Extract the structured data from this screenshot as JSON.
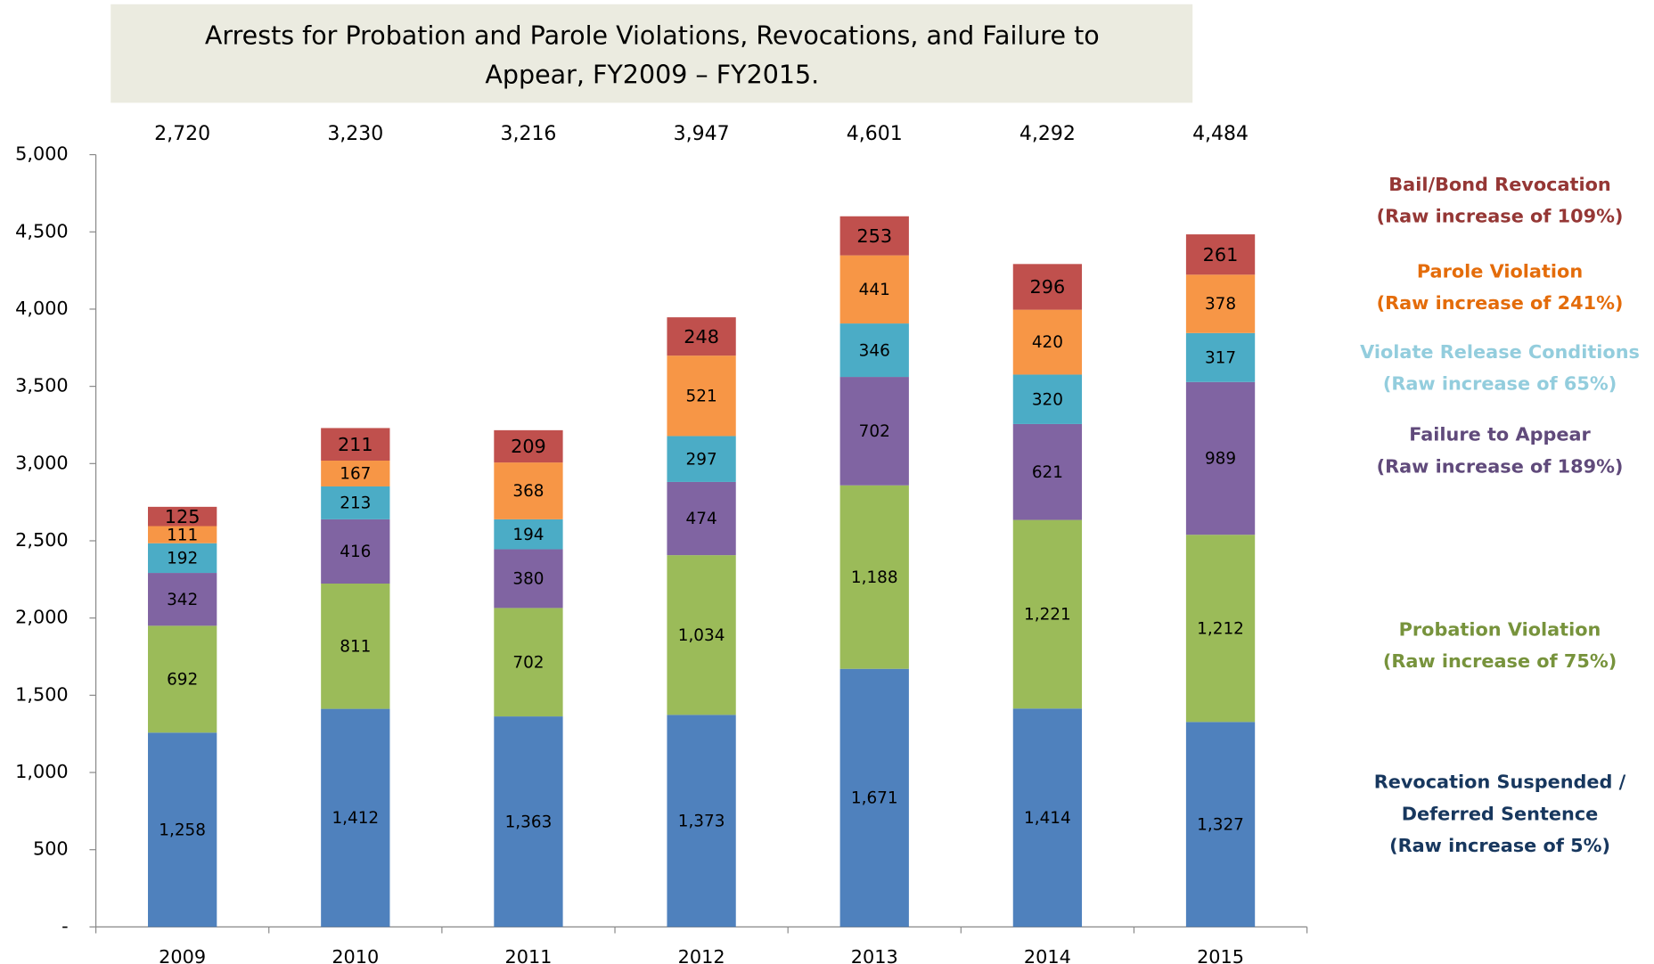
{
  "chart_data": {
    "type": "stacked_bar",
    "title": [
      "Arrests for Probation and Parole Violations, Revocations, and Failure to",
      "Appear, FY2009 – FY2015."
    ],
    "categories": [
      "2009",
      "2010",
      "2011",
      "2012",
      "2013",
      "2014",
      "2015"
    ],
    "series": [
      {
        "name": "Revocation Suspended / Deferred Sentence",
        "note": "(Raw increase of 5%)",
        "color": "#4f81bd",
        "label_color": "#17375e",
        "values": [
          1258,
          1412,
          1363,
          1373,
          1671,
          1414,
          1327
        ],
        "value_labels": [
          "1,258",
          "1,412",
          "1,363",
          "1,373",
          "1,671",
          "1,414",
          "1,327"
        ]
      },
      {
        "name": "Probation Violation",
        "note": "(Raw increase of 75%)",
        "color": "#9bbb59",
        "label_color": "#77933c",
        "values": [
          692,
          811,
          702,
          1034,
          1188,
          1221,
          1212
        ],
        "value_labels": [
          "692",
          "811",
          "702",
          "1,034",
          "1,188",
          "1,221",
          "1,212"
        ]
      },
      {
        "name": "Failure to Appear",
        "note": "(Raw increase of 189%)",
        "color": "#8064a2",
        "label_color": "#604a7b",
        "values": [
          342,
          416,
          380,
          474,
          702,
          621,
          989
        ]
      },
      {
        "name": "Violate Release Conditions",
        "note": "(Raw increase of 65%)",
        "color": "#4bacc6",
        "label_color": "#93cddd",
        "values": [
          192,
          213,
          194,
          297,
          346,
          320,
          317
        ]
      },
      {
        "name": "Parole Violation",
        "note": "(Raw increase of 241%)",
        "color": "#f79646",
        "label_color": "#e46c0a",
        "values": [
          111,
          167,
          368,
          521,
          441,
          420,
          378
        ]
      },
      {
        "name": "Bail/Bond Revocation",
        "note": "(Raw increase of 109%)",
        "color": "#c0504d",
        "label_color": "#953735",
        "values": [
          125,
          211,
          209,
          248,
          253,
          296,
          261
        ]
      }
    ],
    "totals": {
      "values": [
        2720,
        3230,
        3216,
        3947,
        4601,
        4292,
        4484
      ],
      "value_labels": [
        "2,720",
        "3,230",
        "3,216",
        "3,947",
        "4,601",
        "4,292",
        "4,484"
      ]
    },
    "ylim": [
      0,
      5000
    ],
    "yticks": [
      {
        "value": 0,
        "label": "-"
      },
      500,
      {
        "value": 1000,
        "label": "1,000"
      },
      {
        "value": 1500,
        "label": "1,500"
      },
      {
        "value": 2000,
        "label": "2,000"
      },
      {
        "value": 2500,
        "label": "2,500"
      },
      {
        "value": 3000,
        "label": "3,000"
      },
      {
        "value": 3500,
        "label": "3,500"
      },
      {
        "value": 4000,
        "label": "4,000"
      },
      {
        "value": 4500,
        "label": "4,500"
      },
      {
        "value": 5000,
        "label": "5,000"
      }
    ],
    "grid": false
  }
}
